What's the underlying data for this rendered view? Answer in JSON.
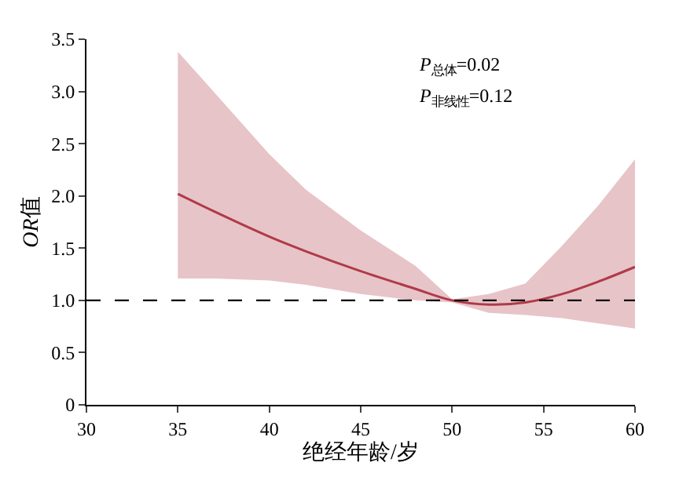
{
  "chart_data": {
    "type": "line",
    "xlabel": "绝经年龄/岁",
    "ylabel": "OR值",
    "annotations": [
      "P$_{总体}$=0.02",
      "P$_{非线性}$=0.12"
    ],
    "x": [
      35,
      37,
      40,
      42,
      45,
      48,
      50,
      52,
      54,
      56,
      58,
      60
    ],
    "series": [
      {
        "color": "#b03a48",
        "values": [
          2.02,
          1.85,
          1.61,
          1.47,
          1.28,
          1.11,
          1.0,
          0.96,
          0.98,
          1.06,
          1.18,
          1.32
        ],
        "lower": [
          1.21,
          1.21,
          1.19,
          1.15,
          1.06,
          1.0,
          0.98,
          0.88,
          0.86,
          0.83,
          0.78,
          0.73
        ],
        "upper": [
          3.38,
          2.99,
          2.4,
          2.06,
          1.67,
          1.33,
          1.01,
          1.06,
          1.16,
          1.52,
          1.91,
          2.35
        ]
      }
    ],
    "xlim": [
      30,
      60
    ],
    "xticks": [
      30,
      35,
      40,
      45,
      50,
      55,
      60
    ],
    "ylim": [
      0,
      3.5
    ],
    "yticks": [
      0,
      0.5,
      {
        "value": 1,
        "label": "1.0"
      },
      1.5,
      {
        "value": 2,
        "label": "2.0"
      },
      2.5,
      {
        "value": 3,
        "label": "3.0"
      },
      3.5
    ],
    "ref_lines": [
      {
        "axis": "y",
        "value": 1,
        "color": "#000000",
        "line_style": "dashed"
      }
    ],
    "marker": "none",
    "line_style": "solid"
  }
}
